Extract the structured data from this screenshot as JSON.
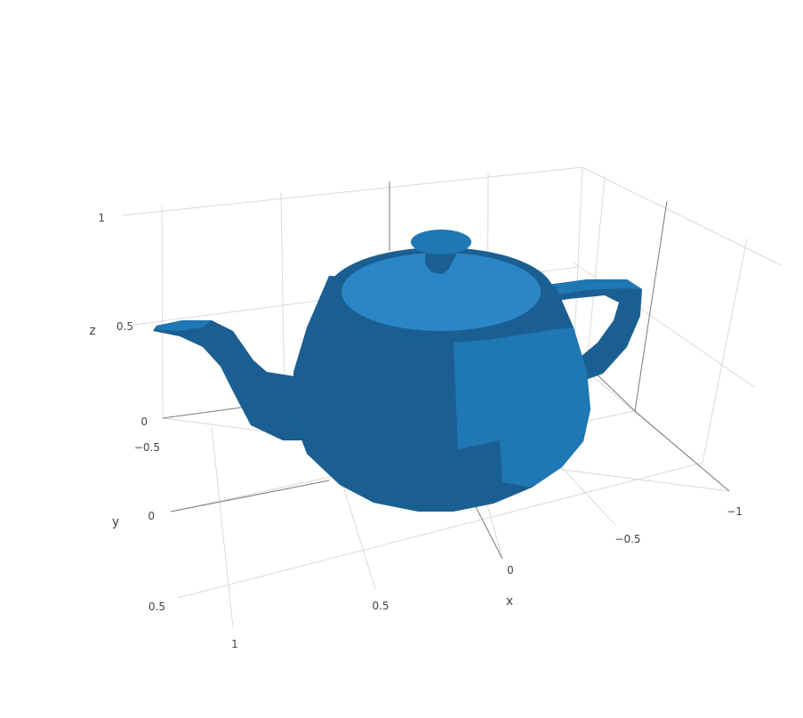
{
  "chart_data": {
    "type": "mesh3d",
    "title": "",
    "color": "#1f77b4",
    "shading": {
      "light": "#2a86c6",
      "mid": "#1f77b4",
      "dark": "#1b5f92"
    },
    "axes": {
      "x": {
        "title": "x",
        "ticks": [
          "−1",
          "−0.5",
          "0",
          "0.5",
          "1"
        ],
        "range": [
          -1,
          1
        ]
      },
      "y": {
        "title": "y",
        "ticks": [
          "−0.5",
          "0",
          "0.5"
        ],
        "range": [
          -0.5,
          0.5
        ]
      },
      "z": {
        "title": "z",
        "ticks": [
          "0",
          "0.5",
          "1"
        ],
        "range": [
          0,
          1
        ]
      }
    },
    "gridlines": true,
    "object": "teapot"
  }
}
